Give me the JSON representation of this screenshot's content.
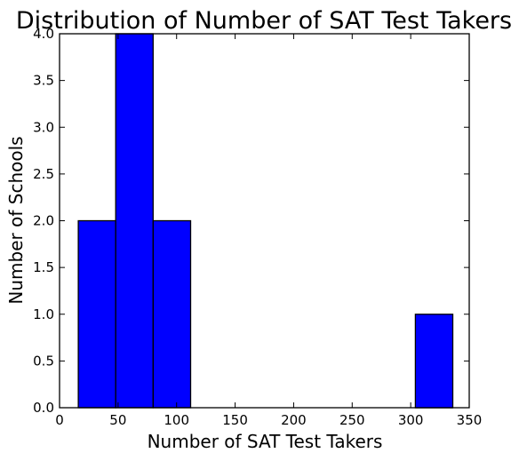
{
  "chart_data": {
    "type": "bar",
    "title": "Distribution of Number of SAT Test Takers",
    "xlabel": "Number of SAT Test Takers",
    "ylabel": "Number of Schools",
    "xlim": [
      0,
      350
    ],
    "ylim": [
      0,
      4.0
    ],
    "xticks": [
      "0",
      "50",
      "100",
      "150",
      "200",
      "250",
      "300",
      "350"
    ],
    "yticks": [
      "0.0",
      "0.5",
      "1.0",
      "1.5",
      "2.0",
      "2.5",
      "3.0",
      "3.5",
      "4.0"
    ],
    "bins": [
      {
        "x0": 16,
        "x1": 48,
        "value": 2
      },
      {
        "x0": 48,
        "x1": 80,
        "value": 4
      },
      {
        "x0": 80,
        "x1": 112,
        "value": 2
      },
      {
        "x0": 112,
        "x1": 144,
        "value": 0
      },
      {
        "x0": 144,
        "x1": 176,
        "value": 0
      },
      {
        "x0": 176,
        "x1": 208,
        "value": 0
      },
      {
        "x0": 208,
        "x1": 240,
        "value": 0
      },
      {
        "x0": 240,
        "x1": 272,
        "value": 0
      },
      {
        "x0": 272,
        "x1": 304,
        "value": 0
      },
      {
        "x0": 304,
        "x1": 336,
        "value": 1
      }
    ],
    "bar_color": "#0000ff",
    "edge_color": "#000000",
    "grid": false,
    "legend": "none"
  }
}
